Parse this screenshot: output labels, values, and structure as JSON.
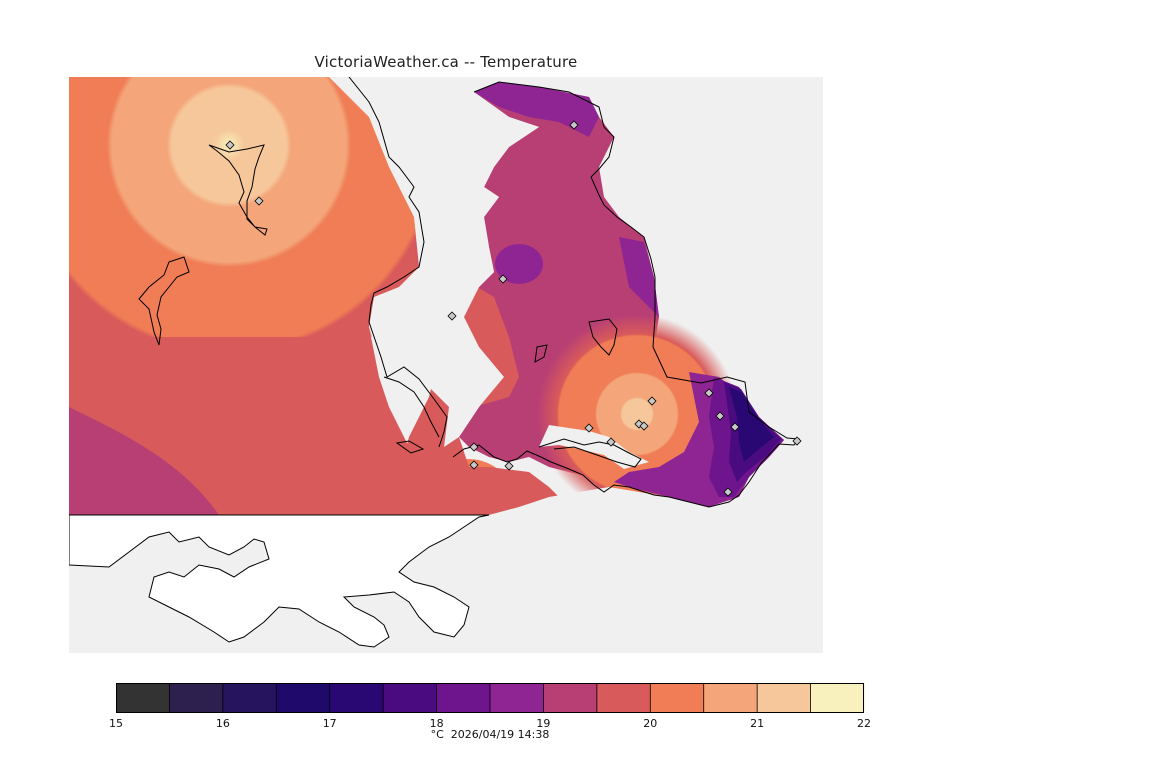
{
  "title": "VictoriaWeather.ca -- Temperature",
  "legend": {
    "unit": "°C",
    "timestamp": "2026/04/19 14:38",
    "ticks": [
      "15",
      "16",
      "17",
      "18",
      "19",
      "20",
      "21",
      "22"
    ],
    "min": 15,
    "max": 22,
    "colors": [
      "#333333",
      "#2d1f4e",
      "#26145e",
      "#1f0a6b",
      "#2a0874",
      "#4a0a80",
      "#6e148c",
      "#8e2592",
      "#b83f74",
      "#d95a5a",
      "#f07d55",
      "#f4a57a",
      "#f6c79a",
      "#f8f0bd"
    ]
  },
  "colors": {
    "background": "#f0f0f0",
    "land_outside": "#ffffff",
    "coast": "#000000"
  },
  "stations": {
    "marker_icon": "diamond-icon"
  }
}
